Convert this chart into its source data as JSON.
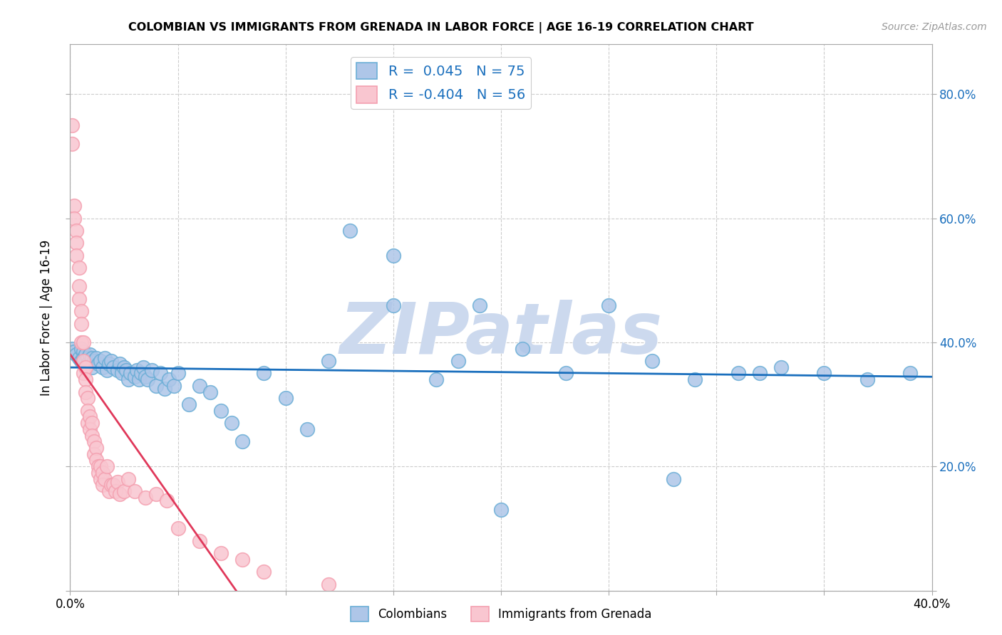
{
  "title": "COLOMBIAN VS IMMIGRANTS FROM GRENADA IN LABOR FORCE | AGE 16-19 CORRELATION CHART",
  "source": "Source: ZipAtlas.com",
  "ylabel": "In Labor Force | Age 16-19",
  "xlim": [
    0.0,
    0.4
  ],
  "ylim": [
    0.0,
    0.88
  ],
  "xticks": [
    0.0,
    0.05,
    0.1,
    0.15,
    0.2,
    0.25,
    0.3,
    0.35,
    0.4
  ],
  "yticks": [
    0.0,
    0.2,
    0.4,
    0.6,
    0.8
  ],
  "blue_color": "#6baed6",
  "blue_fill": "#aec6e8",
  "pink_color": "#f4a0b0",
  "pink_fill": "#f9c6d0",
  "trend_blue": "#1a6fbd",
  "trend_pink": "#e0385a",
  "r_blue": 0.045,
  "n_blue": 75,
  "r_pink": -0.404,
  "n_pink": 56,
  "blue_x": [
    0.001,
    0.002,
    0.003,
    0.004,
    0.005,
    0.005,
    0.006,
    0.006,
    0.007,
    0.007,
    0.008,
    0.008,
    0.009,
    0.01,
    0.01,
    0.011,
    0.012,
    0.013,
    0.014,
    0.015,
    0.016,
    0.017,
    0.018,
    0.019,
    0.02,
    0.022,
    0.023,
    0.024,
    0.025,
    0.026,
    0.027,
    0.028,
    0.03,
    0.031,
    0.032,
    0.033,
    0.034,
    0.035,
    0.036,
    0.038,
    0.04,
    0.042,
    0.044,
    0.046,
    0.048,
    0.05,
    0.055,
    0.06,
    0.065,
    0.07,
    0.075,
    0.08,
    0.09,
    0.1,
    0.11,
    0.12,
    0.13,
    0.15,
    0.17,
    0.19,
    0.21,
    0.23,
    0.25,
    0.27,
    0.29,
    0.31,
    0.33,
    0.35,
    0.37,
    0.39,
    0.15,
    0.18,
    0.2,
    0.28,
    0.32
  ],
  "blue_y": [
    0.39,
    0.385,
    0.38,
    0.375,
    0.39,
    0.37,
    0.385,
    0.375,
    0.38,
    0.37,
    0.375,
    0.365,
    0.38,
    0.375,
    0.36,
    0.37,
    0.375,
    0.365,
    0.37,
    0.36,
    0.375,
    0.355,
    0.365,
    0.37,
    0.36,
    0.355,
    0.365,
    0.35,
    0.36,
    0.355,
    0.34,
    0.35,
    0.345,
    0.355,
    0.34,
    0.35,
    0.36,
    0.345,
    0.34,
    0.355,
    0.33,
    0.35,
    0.325,
    0.34,
    0.33,
    0.35,
    0.3,
    0.33,
    0.32,
    0.29,
    0.27,
    0.24,
    0.35,
    0.31,
    0.26,
    0.37,
    0.58,
    0.54,
    0.34,
    0.46,
    0.39,
    0.35,
    0.46,
    0.37,
    0.34,
    0.35,
    0.36,
    0.35,
    0.34,
    0.35,
    0.46,
    0.37,
    0.13,
    0.18,
    0.35
  ],
  "pink_x": [
    0.001,
    0.001,
    0.002,
    0.002,
    0.003,
    0.003,
    0.003,
    0.004,
    0.004,
    0.004,
    0.005,
    0.005,
    0.005,
    0.006,
    0.006,
    0.006,
    0.007,
    0.007,
    0.007,
    0.008,
    0.008,
    0.008,
    0.009,
    0.009,
    0.01,
    0.01,
    0.011,
    0.011,
    0.012,
    0.012,
    0.013,
    0.013,
    0.014,
    0.014,
    0.015,
    0.015,
    0.016,
    0.017,
    0.018,
    0.019,
    0.02,
    0.021,
    0.022,
    0.023,
    0.025,
    0.027,
    0.03,
    0.035,
    0.04,
    0.045,
    0.05,
    0.06,
    0.07,
    0.08,
    0.09,
    0.12
  ],
  "pink_y": [
    0.75,
    0.72,
    0.62,
    0.6,
    0.58,
    0.56,
    0.54,
    0.52,
    0.49,
    0.47,
    0.45,
    0.43,
    0.4,
    0.4,
    0.37,
    0.35,
    0.36,
    0.34,
    0.32,
    0.31,
    0.29,
    0.27,
    0.28,
    0.26,
    0.27,
    0.25,
    0.24,
    0.22,
    0.23,
    0.21,
    0.2,
    0.19,
    0.2,
    0.18,
    0.19,
    0.17,
    0.18,
    0.2,
    0.16,
    0.17,
    0.17,
    0.16,
    0.175,
    0.155,
    0.16,
    0.18,
    0.16,
    0.15,
    0.155,
    0.145,
    0.1,
    0.08,
    0.06,
    0.05,
    0.03,
    0.01
  ],
  "watermark": "ZIPatlas",
  "watermark_color": "#ccd9ee",
  "background_color": "#ffffff",
  "grid_color": "#cccccc"
}
